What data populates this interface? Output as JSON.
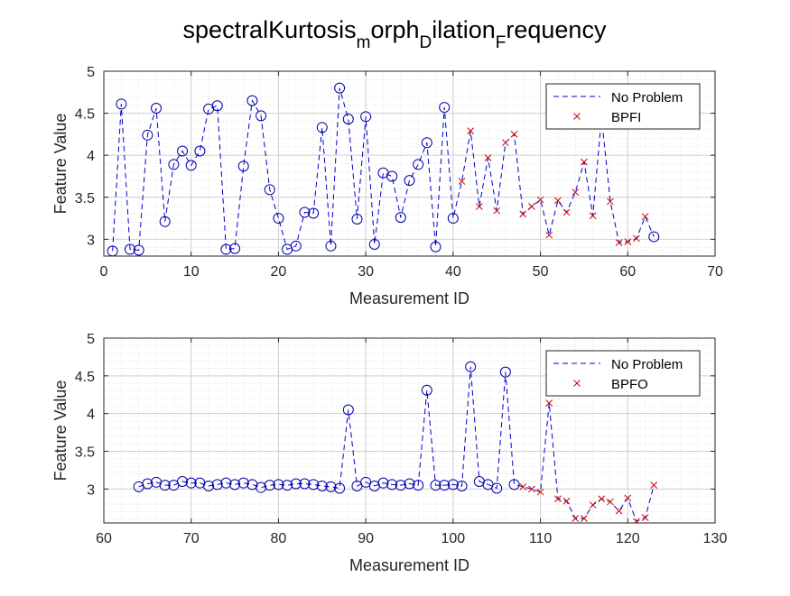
{
  "figure": {
    "title_parts": [
      {
        "text": "spectralKurtosis",
        "sub": false
      },
      {
        "text": "m",
        "sub": true
      },
      {
        "text": "orph",
        "sub": false
      },
      {
        "text": "D",
        "sub": true
      },
      {
        "text": "ilation",
        "sub": false
      },
      {
        "text": "F",
        "sub": true
      },
      {
        "text": "requency",
        "sub": false
      }
    ]
  },
  "colors": {
    "series_line": "#0000cc",
    "marker_normal": "#0000aa",
    "marker_fault": "#cc0000",
    "grid": "#d0d0d0",
    "axis": "#262626"
  },
  "chart_data": [
    {
      "type": "line",
      "xlabel": "Measurement ID",
      "ylabel": "Feature Value",
      "xlim": [
        0,
        70
      ],
      "ylim": [
        2.8,
        5
      ],
      "xticks": [
        0,
        10,
        20,
        30,
        40,
        50,
        60,
        70
      ],
      "yticks": [
        3,
        3.5,
        4,
        4.5,
        5
      ],
      "grid": true,
      "minor_grid": true,
      "legend_position": "top-right",
      "series": [
        {
          "name": "No Problem",
          "line": "dashed",
          "marker": "circle",
          "x": [
            1,
            2,
            3,
            4,
            5,
            6,
            7,
            8,
            9,
            10,
            11,
            12,
            13,
            14,
            15,
            16,
            17,
            18,
            19,
            20,
            21,
            22,
            23,
            24,
            25,
            26,
            27,
            28,
            29,
            30,
            31,
            32,
            33,
            34,
            35,
            36,
            37,
            38,
            39,
            40,
            41,
            42,
            43,
            44,
            45,
            46,
            47,
            48,
            49,
            50,
            51,
            52,
            53,
            54,
            55,
            56,
            57,
            58,
            59,
            60,
            61,
            62,
            63
          ],
          "y": [
            2.86,
            4.61,
            2.88,
            2.87,
            4.24,
            4.56,
            3.21,
            3.89,
            4.05,
            3.88,
            4.05,
            4.55,
            4.59,
            2.88,
            2.89,
            3.87,
            4.65,
            4.47,
            3.59,
            3.25,
            2.88,
            2.92,
            3.32,
            3.31,
            4.33,
            2.92,
            4.8,
            4.43,
            3.24,
            4.46,
            2.94,
            3.79,
            3.75,
            3.26,
            3.7,
            3.89,
            4.15,
            2.91,
            4.57,
            3.25,
            3.69,
            4.29,
            3.39,
            3.97,
            3.34,
            4.15,
            4.25,
            3.3,
            3.39,
            3.47,
            3.05,
            3.46,
            3.32,
            3.56,
            3.92,
            3.28,
            4.45,
            3.45,
            2.96,
            2.97,
            3.01,
            3.27,
            3.03
          ],
          "marker_first_n": 40,
          "marker_also_x": [
            63
          ]
        },
        {
          "name": "BPFI",
          "marker": "x",
          "x": [
            41,
            42,
            43,
            44,
            45,
            46,
            47,
            48,
            49,
            50,
            51,
            52,
            53,
            54,
            55,
            56,
            57,
            58,
            59,
            60,
            61,
            62
          ],
          "y": [
            3.69,
            4.29,
            3.39,
            3.97,
            3.34,
            4.15,
            4.25,
            3.3,
            3.39,
            3.47,
            3.05,
            3.46,
            3.32,
            3.56,
            3.92,
            3.28,
            4.45,
            3.45,
            2.96,
            2.97,
            3.01,
            3.27
          ]
        }
      ]
    },
    {
      "type": "line",
      "xlabel": "Measurement ID",
      "ylabel": "Feature Value",
      "xlim": [
        60,
        130
      ],
      "ylim": [
        2.55,
        5
      ],
      "xticks": [
        60,
        70,
        80,
        90,
        100,
        110,
        120,
        130
      ],
      "yticks": [
        3,
        3.5,
        4,
        4.5,
        5
      ],
      "grid": true,
      "minor_grid": true,
      "legend_position": "top-right",
      "series": [
        {
          "name": "No Problem",
          "line": "dashed",
          "marker": "circle",
          "x": [
            64,
            65,
            66,
            67,
            68,
            69,
            70,
            71,
            72,
            73,
            74,
            75,
            76,
            77,
            78,
            79,
            80,
            81,
            82,
            83,
            84,
            85,
            86,
            87,
            88,
            89,
            90,
            91,
            92,
            93,
            94,
            95,
            96,
            97,
            98,
            99,
            100,
            101,
            102,
            103,
            104,
            105,
            106,
            107,
            108,
            109,
            110,
            111,
            112,
            113,
            114,
            115,
            116,
            117,
            118,
            119,
            120,
            121,
            122,
            123
          ],
          "y": [
            3.03,
            3.07,
            3.09,
            3.05,
            3.05,
            3.1,
            3.08,
            3.08,
            3.04,
            3.06,
            3.08,
            3.06,
            3.08,
            3.06,
            3.02,
            3.05,
            3.06,
            3.05,
            3.07,
            3.07,
            3.06,
            3.04,
            3.03,
            3.01,
            4.05,
            3.04,
            3.09,
            3.04,
            3.08,
            3.06,
            3.05,
            3.07,
            3.05,
            4.31,
            3.05,
            3.05,
            3.06,
            3.04,
            4.62,
            3.1,
            3.06,
            3.01,
            4.55,
            3.06,
            3.03,
            3.0,
            2.96,
            4.14,
            2.87,
            2.84,
            2.61,
            2.61,
            2.79,
            2.87,
            2.83,
            2.71,
            2.88,
            2.57,
            2.62,
            3.05
          ],
          "marker_first_n": 44,
          "marker_also_x": []
        },
        {
          "name": "BPFO",
          "marker": "x",
          "x": [
            108,
            109,
            110,
            111,
            112,
            113,
            114,
            115,
            116,
            117,
            118,
            119,
            120,
            121,
            122,
            123
          ],
          "y": [
            3.03,
            3.0,
            2.96,
            4.14,
            2.87,
            2.84,
            2.61,
            2.61,
            2.79,
            2.87,
            2.83,
            2.71,
            2.88,
            2.57,
            2.62,
            3.05
          ]
        }
      ]
    }
  ]
}
